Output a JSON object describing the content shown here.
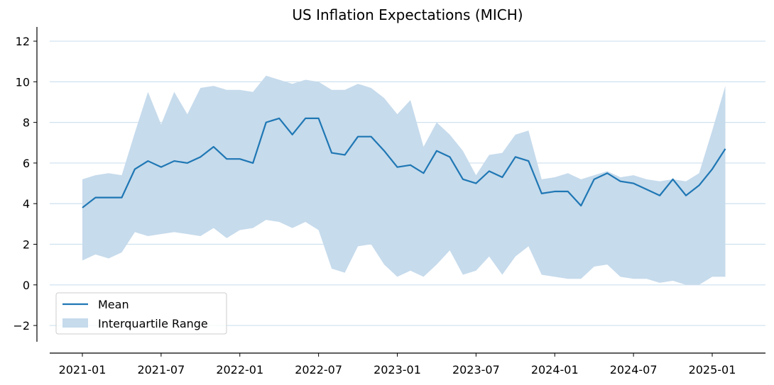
{
  "chart_data": {
    "type": "line",
    "title": "US Inflation Expectations (MICH)",
    "xlabel": "",
    "ylabel": "",
    "ylim": [
      -2.8,
      12.7
    ],
    "x_ticks": [
      "2021-01",
      "2021-07",
      "2022-01",
      "2022-07",
      "2023-01",
      "2023-07",
      "2024-01",
      "2024-07",
      "2025-01"
    ],
    "y_ticks": [
      -2,
      0,
      2,
      4,
      6,
      8,
      10,
      12
    ],
    "y_tick_labels": [
      "−2",
      "0",
      "2",
      "4",
      "6",
      "8",
      "10",
      "12"
    ],
    "grid": "horizontal",
    "legend_position": "lower-left",
    "x": [
      "2021-01",
      "2021-02",
      "2021-03",
      "2021-04",
      "2021-05",
      "2021-06",
      "2021-07",
      "2021-08",
      "2021-09",
      "2021-10",
      "2021-11",
      "2021-12",
      "2022-01",
      "2022-02",
      "2022-03",
      "2022-04",
      "2022-05",
      "2022-06",
      "2022-07",
      "2022-08",
      "2022-09",
      "2022-10",
      "2022-11",
      "2022-12",
      "2023-01",
      "2023-02",
      "2023-03",
      "2023-04",
      "2023-05",
      "2023-06",
      "2023-07",
      "2023-08",
      "2023-09",
      "2023-10",
      "2023-11",
      "2023-12",
      "2024-01",
      "2024-02",
      "2024-03",
      "2024-04",
      "2024-05",
      "2024-06",
      "2024-07",
      "2024-08",
      "2024-09",
      "2024-10",
      "2024-11",
      "2024-12",
      "2025-01",
      "2025-02"
    ],
    "series": [
      {
        "name": "Mean",
        "color": "#1f77b4",
        "values": [
          3.8,
          4.3,
          4.3,
          4.3,
          5.7,
          6.1,
          5.8,
          6.1,
          6.0,
          6.3,
          6.8,
          6.2,
          6.2,
          6.0,
          8.0,
          8.2,
          7.4,
          8.2,
          8.2,
          6.5,
          6.4,
          7.3,
          7.3,
          6.6,
          5.8,
          5.9,
          5.5,
          6.6,
          6.3,
          5.2,
          5.0,
          5.6,
          5.3,
          6.3,
          6.1,
          4.5,
          4.6,
          4.6,
          3.9,
          5.2,
          5.5,
          5.1,
          5.0,
          4.7,
          4.4,
          5.2,
          4.4,
          4.9,
          5.7,
          6.7
        ]
      },
      {
        "name": "Interquartile Range",
        "color": "#c6dbec",
        "lower": [
          1.2,
          1.5,
          1.3,
          1.6,
          2.6,
          2.4,
          2.5,
          2.6,
          2.5,
          2.4,
          2.8,
          2.3,
          2.7,
          2.8,
          3.2,
          3.1,
          2.8,
          3.1,
          2.7,
          0.8,
          0.6,
          1.9,
          2.0,
          1.0,
          0.4,
          0.7,
          0.4,
          1.0,
          1.7,
          0.5,
          0.7,
          1.4,
          0.5,
          1.4,
          1.9,
          0.5,
          0.4,
          0.3,
          0.3,
          0.9,
          1.0,
          0.4,
          0.3,
          0.3,
          0.1,
          0.2,
          0.0,
          0.0,
          0.4,
          0.4
        ],
        "upper": [
          5.2,
          5.4,
          5.5,
          5.4,
          7.5,
          9.5,
          7.9,
          9.5,
          8.4,
          9.7,
          9.8,
          9.6,
          9.6,
          9.5,
          10.3,
          10.1,
          9.9,
          10.1,
          10.0,
          9.6,
          9.6,
          9.9,
          9.7,
          9.2,
          8.4,
          9.1,
          6.8,
          8.0,
          7.4,
          6.6,
          5.4,
          6.4,
          6.5,
          7.4,
          7.6,
          5.2,
          5.3,
          5.5,
          5.2,
          5.4,
          5.6,
          5.3,
          5.4,
          5.2,
          5.1,
          5.2,
          5.1,
          5.5,
          7.6,
          9.8
        ]
      }
    ]
  }
}
